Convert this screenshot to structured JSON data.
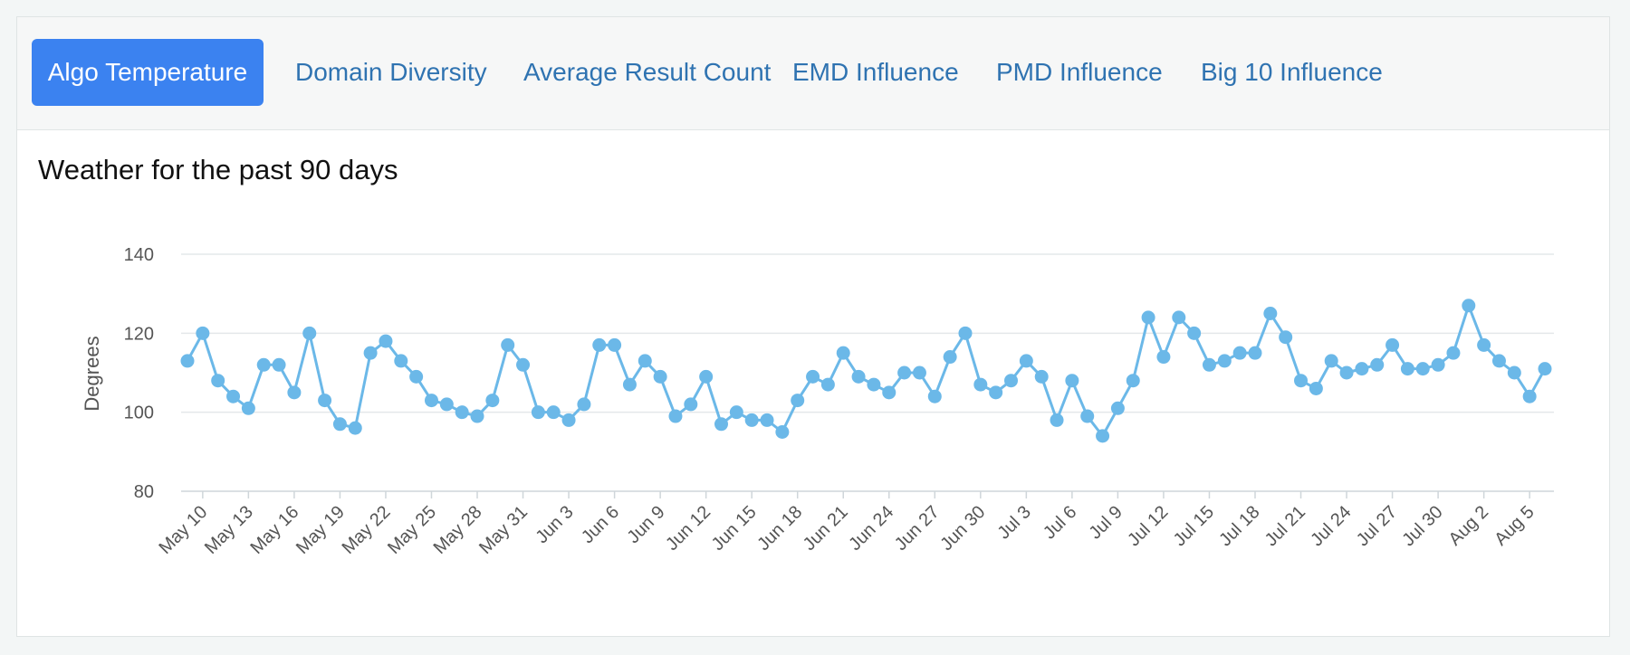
{
  "tabs": [
    {
      "label": "Algo Temperature",
      "active": true
    },
    {
      "label": "Domain Diversity",
      "active": false
    },
    {
      "label": "Average Result Count",
      "active": false
    },
    {
      "label": "EMD Influence",
      "active": false
    },
    {
      "label": "PMD Influence",
      "active": false
    },
    {
      "label": "Big 10 Influence",
      "active": false
    }
  ],
  "colors": {
    "accent": "#3b82f0",
    "tab_text": "#2f73b1",
    "series": "#6bb8e8",
    "grid": "#e4e8ea"
  },
  "chart_data": {
    "type": "line",
    "title": "Weather for the past 90 days",
    "ylabel": "Degrees",
    "xlabel": "",
    "ylim": [
      80,
      140
    ],
    "yticks": [
      80,
      100,
      120,
      140
    ],
    "grid": true,
    "x": [
      "May 9",
      "May 10",
      "May 11",
      "May 12",
      "May 13",
      "May 14",
      "May 15",
      "May 16",
      "May 17",
      "May 18",
      "May 19",
      "May 20",
      "May 21",
      "May 22",
      "May 23",
      "May 24",
      "May 25",
      "May 26",
      "May 27",
      "May 28",
      "May 29",
      "May 30",
      "May 31",
      "Jun 1",
      "Jun 2",
      "Jun 3",
      "Jun 4",
      "Jun 5",
      "Jun 6",
      "Jun 7",
      "Jun 8",
      "Jun 9",
      "Jun 10",
      "Jun 11",
      "Jun 12",
      "Jun 13",
      "Jun 14",
      "Jun 15",
      "Jun 16",
      "Jun 17",
      "Jun 18",
      "Jun 19",
      "Jun 20",
      "Jun 21",
      "Jun 22",
      "Jun 23",
      "Jun 24",
      "Jun 25",
      "Jun 26",
      "Jun 27",
      "Jun 28",
      "Jun 29",
      "Jun 30",
      "Jul 1",
      "Jul 2",
      "Jul 3",
      "Jul 4",
      "Jul 5",
      "Jul 6",
      "Jul 7",
      "Jul 8",
      "Jul 9",
      "Jul 10",
      "Jul 11",
      "Jul 12",
      "Jul 13",
      "Jul 14",
      "Jul 15",
      "Jul 16",
      "Jul 17",
      "Jul 18",
      "Jul 19",
      "Jul 20",
      "Jul 21",
      "Jul 22",
      "Jul 23",
      "Jul 24",
      "Jul 25",
      "Jul 26",
      "Jul 27",
      "Jul 28",
      "Jul 29",
      "Jul 30",
      "Jul 31",
      "Aug 1",
      "Aug 2",
      "Aug 3",
      "Aug 4",
      "Aug 5",
      "Aug 6"
    ],
    "x_tick_labels": [
      "May 10",
      "May 13",
      "May 16",
      "May 19",
      "May 22",
      "May 25",
      "May 28",
      "May 31",
      "Jun 3",
      "Jun 6",
      "Jun 9",
      "Jun 12",
      "Jun 15",
      "Jun 18",
      "Jun 21",
      "Jun 24",
      "Jun 27",
      "Jun 30",
      "Jul 3",
      "Jul 6",
      "Jul 9",
      "Jul 12",
      "Jul 15",
      "Jul 18",
      "Jul 21",
      "Jul 24",
      "Jul 27",
      "Jul 30",
      "Aug 2",
      "Aug 5"
    ],
    "series": [
      {
        "values": [
          113,
          120,
          108,
          104,
          101,
          112,
          112,
          105,
          120,
          103,
          97,
          96,
          115,
          118,
          113,
          109,
          103,
          102,
          100,
          99,
          103,
          117,
          112,
          100,
          100,
          98,
          102,
          117,
          117,
          107,
          113,
          109,
          99,
          102,
          109,
          97,
          100,
          98,
          98,
          95,
          103,
          109,
          107,
          115,
          109,
          107,
          105,
          110,
          110,
          104,
          114,
          120,
          107,
          105,
          108,
          113,
          109,
          98,
          108,
          99,
          94,
          101,
          108,
          124,
          114,
          124,
          120,
          112,
          113,
          115,
          115,
          125,
          119,
          108,
          106,
          113,
          110,
          111,
          112,
          117,
          111,
          111,
          112,
          115,
          127,
          117,
          113,
          110,
          104,
          111
        ]
      }
    ]
  }
}
